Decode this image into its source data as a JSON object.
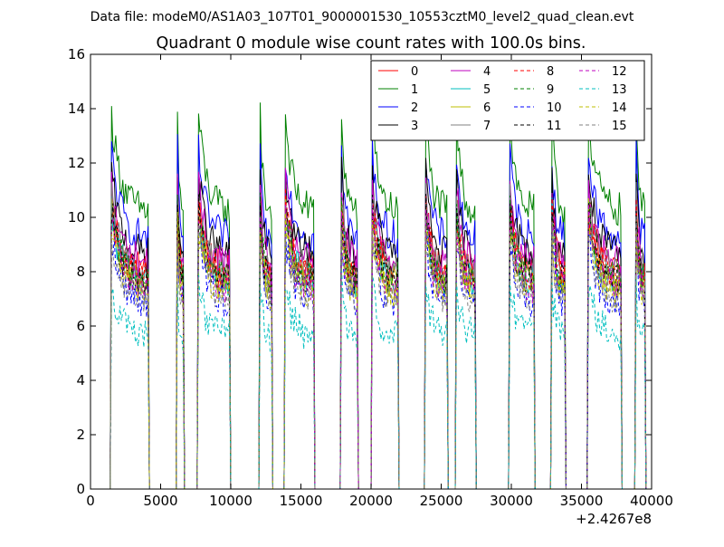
{
  "header": {
    "data_file": "Data file: modeM0/AS1A03_107T01_9000001530_10553cztM0_level2_quad_clean.evt"
  },
  "chart_data": {
    "type": "line",
    "title": "Quadrant 0 module wise count rates with 100.0s bins.",
    "xlabel": "",
    "ylabel": "",
    "x_offset_label": "+2.4267e8",
    "xlim": [
      0,
      40000
    ],
    "ylim": [
      0,
      16
    ],
    "x_ticks": [
      0,
      5000,
      10000,
      15000,
      20000,
      25000,
      30000,
      35000,
      40000
    ],
    "y_ticks": [
      0,
      2,
      4,
      6,
      8,
      10,
      12,
      14,
      16
    ],
    "grid": false,
    "legend_position": "top-right",
    "legend_columns": 4,
    "bin_width_s": 100,
    "segments": [
      {
        "start": 1500,
        "end": 4100
      },
      {
        "start": 6200,
        "end": 6600
      },
      {
        "start": 7700,
        "end": 9900
      },
      {
        "start": 12100,
        "end": 12900
      },
      {
        "start": 13900,
        "end": 15900
      },
      {
        "start": 17900,
        "end": 19000
      },
      {
        "start": 20100,
        "end": 21900
      },
      {
        "start": 23900,
        "end": 25400
      },
      {
        "start": 26100,
        "end": 27400
      },
      {
        "start": 29900,
        "end": 31600
      },
      {
        "start": 32900,
        "end": 33800
      },
      {
        "start": 35500,
        "end": 37800
      },
      {
        "start": 38900,
        "end": 39500
      }
    ],
    "series": [
      {
        "name": "0",
        "color": "#ff0000",
        "dash": "solid",
        "level": 8.0
      },
      {
        "name": "1",
        "color": "#008000",
        "dash": "solid",
        "level": 10.2
      },
      {
        "name": "2",
        "color": "#0000ff",
        "dash": "solid",
        "level": 9.2
      },
      {
        "name": "3",
        "color": "#000000",
        "dash": "solid",
        "level": 8.6
      },
      {
        "name": "4",
        "color": "#bf00bf",
        "dash": "solid",
        "level": 8.3
      },
      {
        "name": "5",
        "color": "#00bfbf",
        "dash": "solid",
        "level": 7.6
      },
      {
        "name": "6",
        "color": "#bfbf00",
        "dash": "solid",
        "level": 7.5
      },
      {
        "name": "7",
        "color": "#808080",
        "dash": "solid",
        "level": 7.9
      },
      {
        "name": "8",
        "color": "#ff0000",
        "dash": "dashed",
        "level": 7.8
      },
      {
        "name": "9",
        "color": "#008000",
        "dash": "dashed",
        "level": 7.7
      },
      {
        "name": "10",
        "color": "#0000ff",
        "dash": "dashed",
        "level": 6.9
      },
      {
        "name": "11",
        "color": "#000000",
        "dash": "dashed",
        "level": 7.6
      },
      {
        "name": "12",
        "color": "#bf00bf",
        "dash": "dashed",
        "level": 7.4
      },
      {
        "name": "13",
        "color": "#00bfbf",
        "dash": "dashed",
        "level": 5.6
      },
      {
        "name": "14",
        "color": "#bfbf00",
        "dash": "dashed",
        "level": 7.2
      },
      {
        "name": "15",
        "color": "#808080",
        "dash": "dashed",
        "level": 7.0
      }
    ]
  }
}
